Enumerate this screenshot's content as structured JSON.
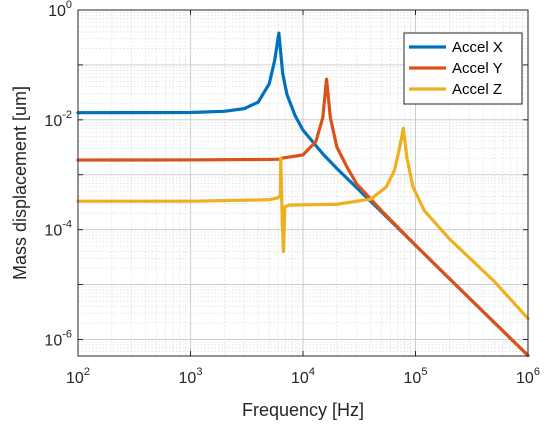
{
  "chart_data": {
    "type": "line",
    "title": "",
    "xlabel": "Frequency [Hz]",
    "ylabel": "Mass displacement [um]",
    "x_scale": "log",
    "y_scale": "log",
    "xlim": [
      100,
      1000000
    ],
    "ylim": [
      5e-07,
      1
    ],
    "x_ticks": [
      {
        "base": "10",
        "exp": "2",
        "value": 100
      },
      {
        "base": "10",
        "exp": "3",
        "value": 1000
      },
      {
        "base": "10",
        "exp": "4",
        "value": 10000
      },
      {
        "base": "10",
        "exp": "5",
        "value": 100000
      },
      {
        "base": "10",
        "exp": "6",
        "value": 1000000
      }
    ],
    "y_ticks": [
      {
        "base": "10",
        "exp": "0",
        "value": 1
      },
      {
        "base": "10",
        "exp": "-2",
        "value": 0.01
      },
      {
        "base": "10",
        "exp": "-4",
        "value": 0.0001
      },
      {
        "base": "10",
        "exp": "-6",
        "value": 1e-06
      }
    ],
    "grid": true,
    "legend_position": "top-right",
    "series": [
      {
        "name": "Accel X",
        "color": "#0072BD",
        "points": [
          [
            100,
            0.0135
          ],
          [
            1000,
            0.0136
          ],
          [
            2000,
            0.0143
          ],
          [
            3000,
            0.016
          ],
          [
            4000,
            0.021
          ],
          [
            5000,
            0.045
          ],
          [
            5600,
            0.12
          ],
          [
            6100,
            0.38
          ],
          [
            6600,
            0.07
          ],
          [
            7200,
            0.029
          ],
          [
            8500,
            0.012
          ],
          [
            10000,
            0.0065
          ],
          [
            15000,
            0.0024
          ],
          [
            20000,
            0.0013
          ],
          [
            30000,
            0.00058
          ],
          [
            50000,
            0.00021
          ],
          [
            100000,
            5.2e-05
          ],
          [
            200000,
            1.28e-05
          ],
          [
            500000,
            2.05e-06
          ],
          [
            1000000,
            5.1e-07
          ]
        ]
      },
      {
        "name": "Accel Y",
        "color": "#D95319",
        "points": [
          [
            100,
            0.00185
          ],
          [
            1000,
            0.00186
          ],
          [
            5000,
            0.0019
          ],
          [
            6300,
            0.00192
          ],
          [
            6500,
            0.002
          ],
          [
            10000,
            0.0023
          ],
          [
            13000,
            0.004
          ],
          [
            15000,
            0.011
          ],
          [
            16200,
            0.055
          ],
          [
            17500,
            0.011
          ],
          [
            20000,
            0.0032
          ],
          [
            25000,
            0.0013
          ],
          [
            30000,
            0.00068
          ],
          [
            50000,
            0.00022
          ],
          [
            100000,
            5.2e-05
          ],
          [
            200000,
            1.28e-05
          ],
          [
            500000,
            2.05e-06
          ],
          [
            1000000,
            5.1e-07
          ]
        ]
      },
      {
        "name": "Accel Z",
        "color": "#EDB120",
        "points": [
          [
            100,
            0.00033
          ],
          [
            1000,
            0.00033
          ],
          [
            5000,
            0.00035
          ],
          [
            6000,
            0.00038
          ],
          [
            6300,
            0.00042
          ],
          [
            6350,
            0.002
          ],
          [
            6550,
            0.00012
          ],
          [
            6700,
            4e-05
          ],
          [
            6900,
            0.00026
          ],
          [
            7500,
            0.00028
          ],
          [
            20000,
            0.00029
          ],
          [
            40000,
            0.00036
          ],
          [
            55000,
            0.0006
          ],
          [
            65000,
            0.0012
          ],
          [
            72000,
            0.003
          ],
          [
            78000,
            0.007
          ],
          [
            84000,
            0.002
          ],
          [
            95000,
            0.0006
          ],
          [
            120000,
            0.00022
          ],
          [
            200000,
            6.8e-05
          ],
          [
            500000,
            1.15e-05
          ],
          [
            1000000,
            2.4e-06
          ]
        ]
      }
    ]
  }
}
